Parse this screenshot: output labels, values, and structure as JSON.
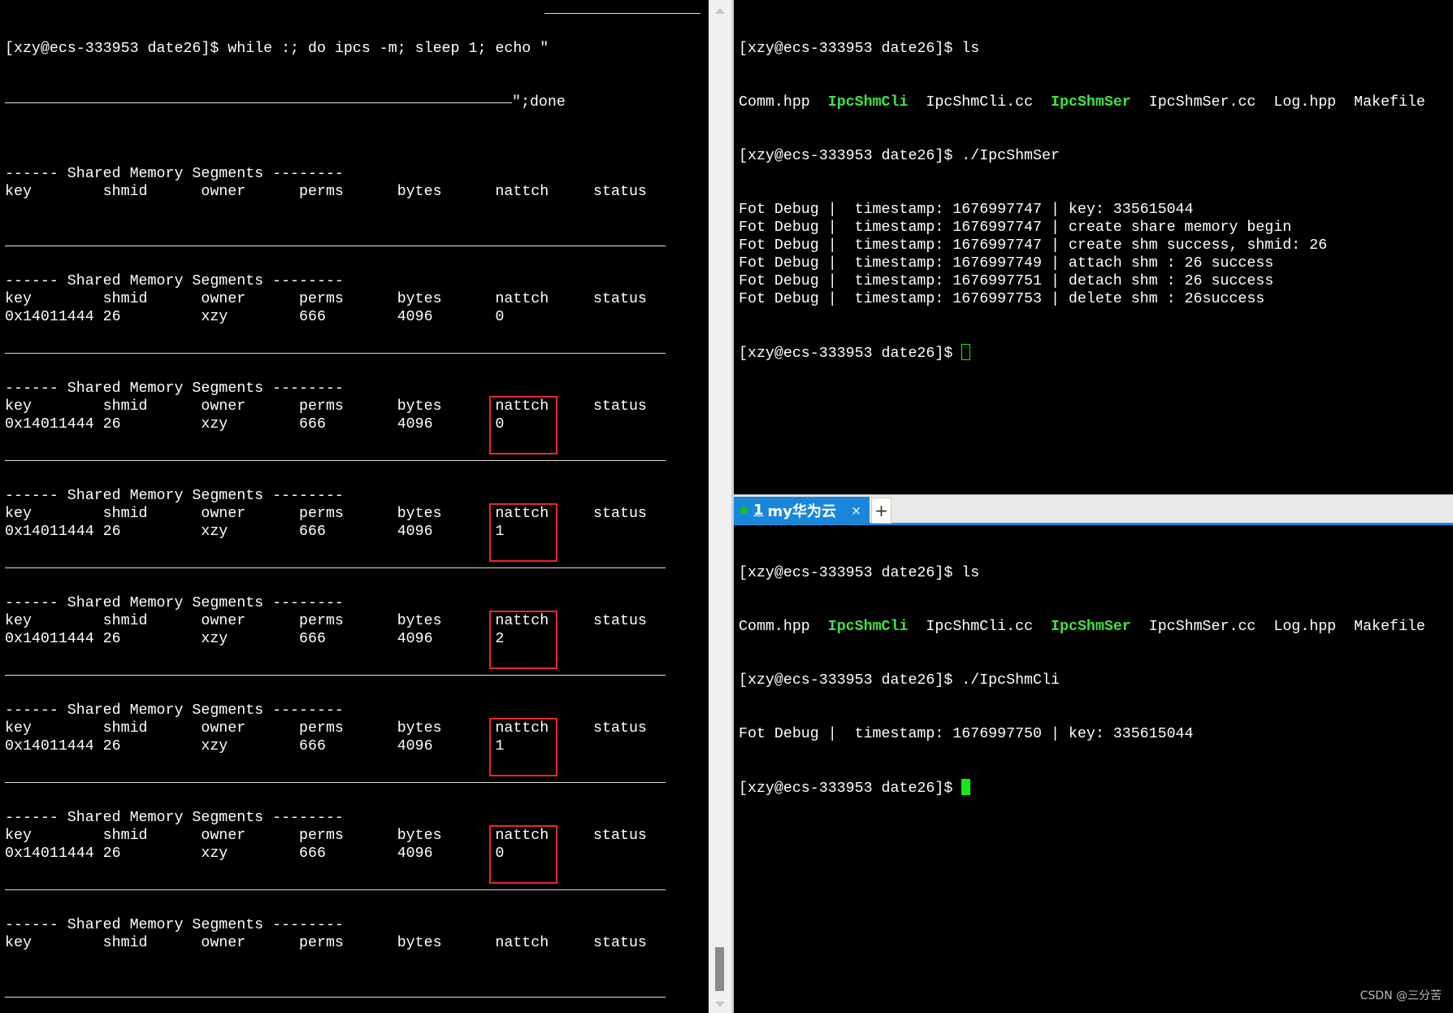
{
  "left_terminal": {
    "command_line_1": "[xzy@ecs-333953 date26]$ while :; do ipcs -m; sleep 1; echo \"",
    "command_line_2_suffix": "\";done",
    "blocks": [
      {
        "header": "------ Shared Memory Segments --------",
        "columns": "key        shmid      owner      perms      bytes      nattch     status",
        "row": null,
        "highlight": false
      },
      {
        "header": "------ Shared Memory Segments --------",
        "columns": "key        shmid      owner      perms      bytes      nattch     status",
        "row": "0x14011444 26         xzy        666        4096       0",
        "highlight": false
      },
      {
        "header": "------ Shared Memory Segments --------",
        "columns": "key        shmid      owner      perms      bytes      nattch     status",
        "row": "0x14011444 26         xzy        666        4096       0",
        "highlight": true
      },
      {
        "header": "------ Shared Memory Segments --------",
        "columns": "key        shmid      owner      perms      bytes      nattch     status",
        "row": "0x14011444 26         xzy        666        4096       1",
        "highlight": true
      },
      {
        "header": "------ Shared Memory Segments --------",
        "columns": "key        shmid      owner      perms      bytes      nattch     status",
        "row": "0x14011444 26         xzy        666        4096       2",
        "highlight": true
      },
      {
        "header": "------ Shared Memory Segments --------",
        "columns": "key        shmid      owner      perms      bytes      nattch     status",
        "row": "0x14011444 26         xzy        666        4096       1",
        "highlight": true
      },
      {
        "header": "------ Shared Memory Segments --------",
        "columns": "key        shmid      owner      perms      bytes      nattch     status",
        "row": "0x14011444 26         xzy        666        4096       0",
        "highlight": true
      },
      {
        "header": "------ Shared Memory Segments --------",
        "columns": "key        shmid      owner      perms      bytes      nattch     status",
        "row": null,
        "highlight": false
      },
      {
        "header": "------ Shared Memory Segments --------",
        "columns": null,
        "row": null,
        "highlight": false
      }
    ],
    "highlight_color": "#e8262c"
  },
  "right_top": {
    "prompt_ls": "[xzy@ecs-333953 date26]$ ls",
    "files": [
      {
        "name": "Comm.hpp",
        "exec": false
      },
      {
        "name": "IpcShmCli",
        "exec": true
      },
      {
        "name": "IpcShmCli.cc",
        "exec": false
      },
      {
        "name": "IpcShmSer",
        "exec": true
      },
      {
        "name": "IpcShmSer.cc",
        "exec": false
      },
      {
        "name": "Log.hpp",
        "exec": false
      },
      {
        "name": "Makefile",
        "exec": false
      }
    ],
    "prompt_run": "[xzy@ecs-333953 date26]$ ./IpcShmSer",
    "log": [
      "Fot Debug |  timestamp: 1676997747 | key: 335615044",
      "Fot Debug |  timestamp: 1676997747 | create share memory begin",
      "Fot Debug |  timestamp: 1676997747 | create shm success, shmid: 26",
      "Fot Debug |  timestamp: 1676997749 | attach shm : 26 success",
      "Fot Debug |  timestamp: 1676997751 | detach shm : 26 success",
      "Fot Debug |  timestamp: 1676997753 | delete shm : 26success"
    ],
    "prompt_end": "[xzy@ecs-333953 date26]$ "
  },
  "tab": {
    "number": "1",
    "label": "my华为云",
    "close": "×",
    "add": "+",
    "accent": "#1a86d9"
  },
  "right_bottom": {
    "prompt_ls": "[xzy@ecs-333953 date26]$ ls",
    "files": [
      {
        "name": "Comm.hpp",
        "exec": false
      },
      {
        "name": "IpcShmCli",
        "exec": true
      },
      {
        "name": "IpcShmCli.cc",
        "exec": false
      },
      {
        "name": "IpcShmSer",
        "exec": true
      },
      {
        "name": "IpcShmSer.cc",
        "exec": false
      },
      {
        "name": "Log.hpp",
        "exec": false
      },
      {
        "name": "Makefile",
        "exec": false
      }
    ],
    "prompt_run": "[xzy@ecs-333953 date26]$ ./IpcShmCli",
    "log": [
      "Fot Debug |  timestamp: 1676997750 | key: 335615044"
    ],
    "prompt_end": "[xzy@ecs-333953 date26]$ "
  },
  "watermark": "CSDN @三分苦",
  "exec_color": "#3fe33f"
}
